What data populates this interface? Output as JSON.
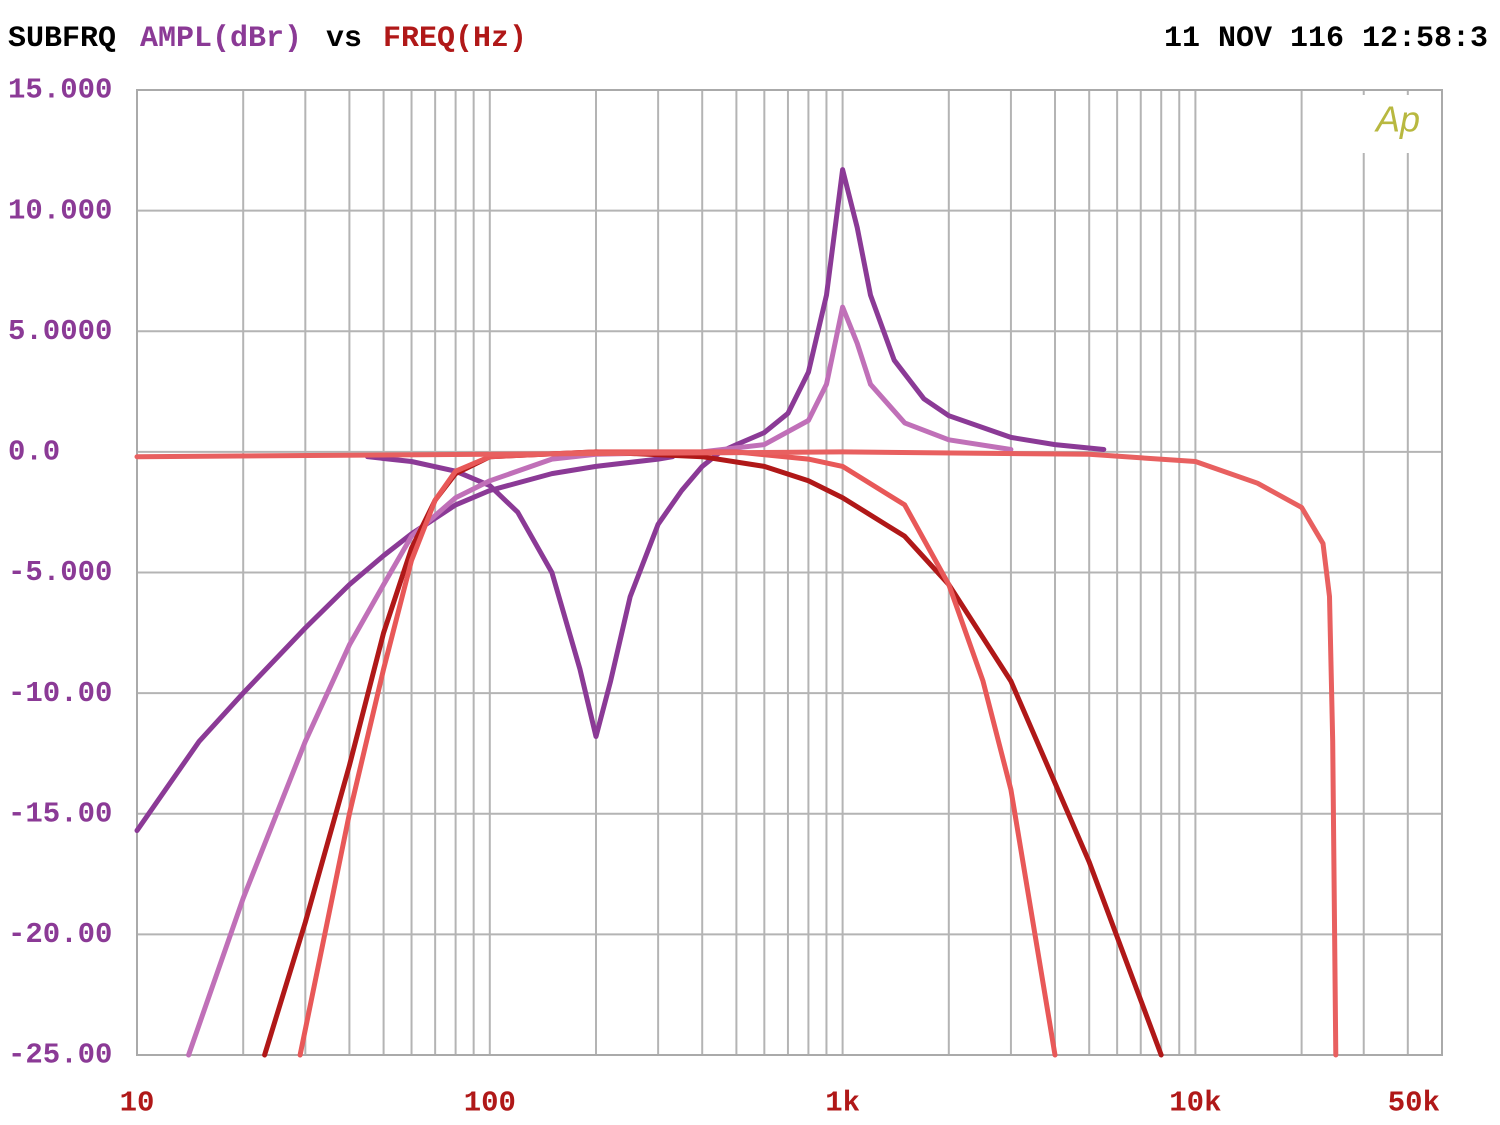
{
  "chart_data": {
    "type": "line",
    "title": "SUBFRQ",
    "ylabel": "AMPL(dBr)",
    "vs": "vs",
    "xlabel": "FREQ(Hz)",
    "timestamp": "11 NOV 116 12:58:3",
    "logo": "Ap",
    "xscale": "log",
    "xlim": [
      10,
      50000
    ],
    "xticks": [
      10,
      100,
      {
        "value": 1000,
        "label": "1k"
      },
      {
        "value": 10000,
        "label": "10k"
      },
      {
        "value": 50000,
        "label": "50k"
      }
    ],
    "xminor": [
      20,
      30,
      40,
      50,
      60,
      70,
      80,
      90,
      200,
      300,
      400,
      500,
      600,
      700,
      800,
      900,
      2000,
      3000,
      4000,
      5000,
      6000,
      7000,
      8000,
      9000,
      20000,
      30000,
      40000
    ],
    "ylim": [
      -25,
      15
    ],
    "yticks": [
      {
        "value": 15,
        "label": "15.000"
      },
      {
        "value": 10,
        "label": "10.000"
      },
      {
        "value": 5,
        "label": "5.0000"
      },
      {
        "value": 0,
        "label": "0.0"
      },
      {
        "value": -5,
        "label": "-5.000"
      },
      {
        "value": -10,
        "label": "-10.00"
      },
      {
        "value": -15,
        "label": "-15.00"
      },
      {
        "value": -20,
        "label": "-20.00"
      },
      {
        "value": -25,
        "label": "-25.00"
      }
    ],
    "grid": true,
    "series": [
      {
        "color": "#8b3a96",
        "x": [
          10,
          15,
          20,
          30,
          40,
          50,
          60,
          80,
          100,
          150,
          200,
          300,
          330
        ],
        "values": [
          -15.7,
          -12,
          -10,
          -7.3,
          -5.5,
          -4.3,
          -3.4,
          -2.2,
          -1.6,
          -0.9,
          -0.6,
          -0.3,
          -0.2
        ]
      },
      {
        "color": "#8b3a96",
        "x": [
          45,
          60,
          80,
          100,
          120,
          150,
          180,
          200,
          220,
          250,
          300,
          350,
          400,
          450,
          500,
          600,
          700,
          800,
          900,
          1000,
          1100,
          1200,
          1400,
          1700,
          2000,
          3000,
          4000,
          5500
        ],
        "values": [
          -0.2,
          -0.4,
          -0.8,
          -1.4,
          -2.5,
          -5,
          -9,
          -11.8,
          -9.5,
          -6,
          -3,
          -1.6,
          -0.6,
          0,
          0.3,
          0.8,
          1.6,
          3.3,
          6.5,
          11.7,
          9.3,
          6.5,
          3.8,
          2.2,
          1.5,
          0.6,
          0.3,
          0.1
        ]
      },
      {
        "color": "#c070b8",
        "x": [
          14,
          20,
          30,
          40,
          50,
          60,
          80,
          100,
          150,
          200,
          400,
          600,
          800,
          900,
          1000,
          1100,
          1200,
          1500,
          2000,
          3000
        ],
        "values": [
          -25,
          -18.5,
          -12,
          -8,
          -5.5,
          -3.5,
          -1.9,
          -1.2,
          -0.3,
          -0.1,
          0,
          0.3,
          1.3,
          2.8,
          6,
          4.5,
          2.8,
          1.2,
          0.5,
          0.1
        ]
      },
      {
        "color": "#b01818",
        "x": [
          23,
          30,
          40,
          50,
          60,
          70,
          80,
          100,
          200,
          400,
          600,
          800,
          1000,
          1500,
          2000,
          3000,
          5000,
          8000
        ],
        "values": [
          -25,
          -19.5,
          -13,
          -7.5,
          -4,
          -2,
          -0.9,
          -0.2,
          0,
          -0.2,
          -0.6,
          -1.2,
          -1.9,
          -3.5,
          -5.5,
          -9.5,
          -17,
          -25
        ]
      },
      {
        "color": "#e85858",
        "x": [
          29,
          40,
          50,
          60,
          70,
          80,
          100,
          200,
          500,
          800,
          1000,
          1500,
          2000,
          2500,
          3000,
          4000
        ],
        "values": [
          -25,
          -15,
          -9,
          -4.5,
          -2,
          -0.8,
          -0.2,
          0,
          0,
          -0.3,
          -0.6,
          -2.2,
          -5.5,
          -9.5,
          -14,
          -25
        ]
      },
      {
        "color": "#e86060",
        "x": [
          10,
          100,
          1000,
          5000,
          10000,
          15000,
          20000,
          23000,
          24000,
          24500,
          25000
        ],
        "values": [
          -0.2,
          -0.1,
          0,
          -0.1,
          -0.4,
          -1.3,
          -2.3,
          -3.8,
          -6,
          -12,
          -25
        ]
      }
    ]
  }
}
